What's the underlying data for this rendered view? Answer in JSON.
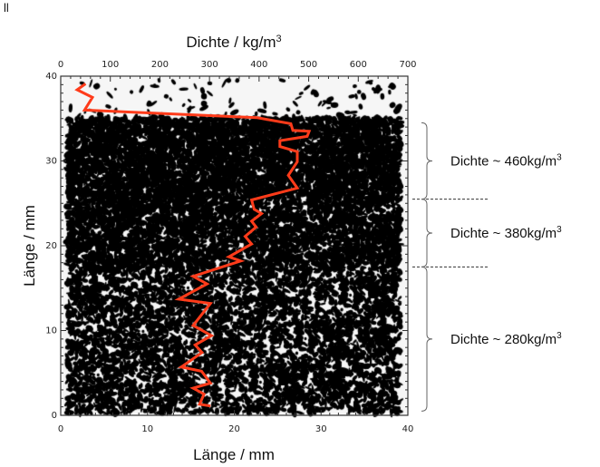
{
  "corner_mark": "ll",
  "chart_data": {
    "type": "line",
    "background": "binarized micro-CT cross-section image (black/white speckle)",
    "top_axis": {
      "label": "Dichte / kg/m",
      "label_sup": "3",
      "range": [
        0,
        700
      ],
      "ticks": [
        "0",
        "100",
        "200",
        "300",
        "400",
        "500",
        "600",
        "700"
      ]
    },
    "bottom_axis": {
      "label": "Länge / mm",
      "range": [
        0,
        40
      ],
      "ticks": [
        "0",
        "10",
        "20",
        "30",
        "40"
      ]
    },
    "left_axis": {
      "label": "Länge / mm",
      "range": [
        0,
        40
      ],
      "ticks": [
        "0",
        "10",
        "20",
        "30",
        "40"
      ]
    },
    "series": [
      {
        "color": "#ff3b1a",
        "points": [
          [
            50,
            39.1
          ],
          [
            33,
            38.4
          ],
          [
            64,
            37.5
          ],
          [
            48,
            36.0
          ],
          [
            396,
            35.1
          ],
          [
            464,
            34.4
          ],
          [
            468,
            33.6
          ],
          [
            501,
            33.5
          ],
          [
            497,
            32.9
          ],
          [
            442,
            32.4
          ],
          [
            442,
            31.7
          ],
          [
            477,
            31.1
          ],
          [
            477,
            29.9
          ],
          [
            459,
            28.3
          ],
          [
            477,
            26.8
          ],
          [
            385,
            25.4
          ],
          [
            390,
            24.3
          ],
          [
            405,
            23.8
          ],
          [
            385,
            22.9
          ],
          [
            394,
            22.2
          ],
          [
            372,
            21.1
          ],
          [
            385,
            20.2
          ],
          [
            339,
            18.7
          ],
          [
            363,
            18.2
          ],
          [
            267,
            16.4
          ],
          [
            295,
            15.5
          ],
          [
            238,
            13.7
          ],
          [
            302,
            13.2
          ],
          [
            267,
            10.6
          ],
          [
            304,
            9.4
          ],
          [
            271,
            8.3
          ],
          [
            285,
            7.4
          ],
          [
            243,
            5.7
          ],
          [
            284,
            5.2
          ],
          [
            302,
            3.8
          ],
          [
            267,
            3.2
          ],
          [
            289,
            2.5
          ],
          [
            280,
            1.3
          ],
          [
            302,
            1.1
          ]
        ]
      }
    ],
    "annotations": [
      {
        "text": "Dichte ~ 460kg/m",
        "sup": "3",
        "range_mm": [
          25.5,
          34.5
        ]
      },
      {
        "text": "Dichte ~ 380kg/m",
        "sup": "3",
        "range_mm": [
          17.5,
          25.5
        ]
      },
      {
        "text": "Dichte ~ 280kg/m",
        "sup": "3",
        "range_mm": [
          0.5,
          17.5
        ]
      }
    ],
    "boundaries_mm": [
      25.5,
      17.5
    ],
    "grid": false
  }
}
